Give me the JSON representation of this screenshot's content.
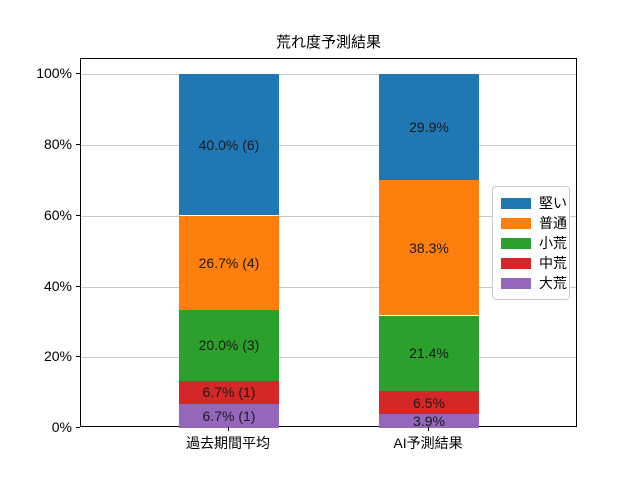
{
  "title": "荒れ度予測結果",
  "chart_data": {
    "type": "bar",
    "subtype": "stacked_percentage",
    "title": "荒れ度予測結果",
    "categories": [
      "過去期間平均",
      "AI予測結果"
    ],
    "series": [
      {
        "name": "堅い",
        "color": "#1f77b4",
        "values": [
          40.0,
          29.9
        ],
        "labels": [
          "40.0% (6)",
          "29.9%"
        ]
      },
      {
        "name": "普通",
        "color": "#ff7f0e",
        "values": [
          26.7,
          38.3
        ],
        "labels": [
          "26.7% (4)",
          "38.3%"
        ]
      },
      {
        "name": "小荒",
        "color": "#2ca02c",
        "values": [
          20.0,
          21.4
        ],
        "labels": [
          "20.0% (3)",
          "21.4%"
        ]
      },
      {
        "name": "中荒",
        "color": "#d62728",
        "values": [
          6.7,
          6.5
        ],
        "labels": [
          "6.7% (1)",
          "6.5%"
        ]
      },
      {
        "name": "大荒",
        "color": "#9467bd",
        "values": [
          6.7,
          3.9
        ],
        "labels": [
          "6.7% (1)",
          "3.9%"
        ]
      }
    ],
    "ylim": [
      0,
      100
    ],
    "yticks": [
      {
        "value": 0,
        "label": "0%"
      },
      {
        "value": 20,
        "label": "20%"
      },
      {
        "value": 40,
        "label": "40%"
      },
      {
        "value": 60,
        "label": "60%"
      },
      {
        "value": 80,
        "label": "80%"
      },
      {
        "value": 100,
        "label": "100%"
      }
    ],
    "grid": true,
    "legend_position": "right",
    "legend_entries": [
      "堅い",
      "普通",
      "小荒",
      "中荒",
      "大荒"
    ]
  }
}
